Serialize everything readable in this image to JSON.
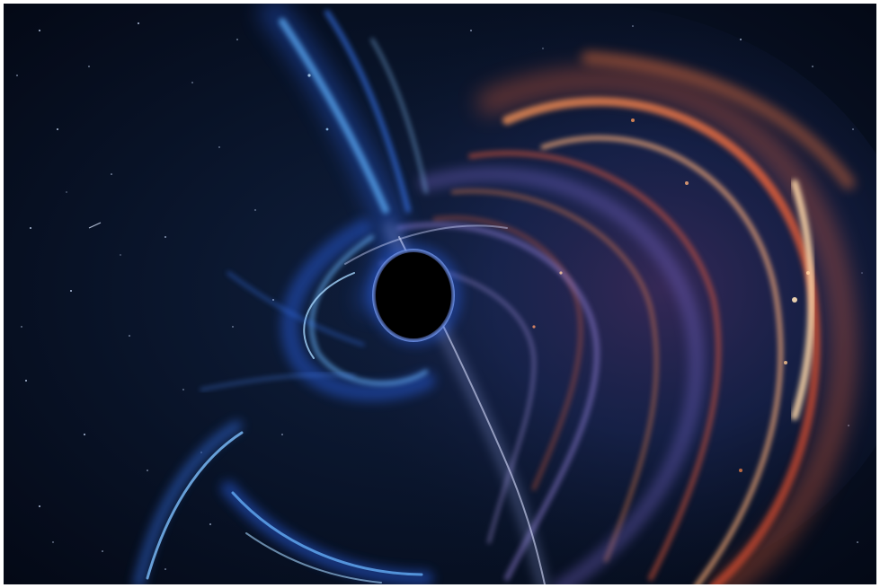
{
  "image": {
    "subject": "black-hole",
    "colors": {
      "background": "#081226",
      "blue_glow": "#2f6bff",
      "cyan_glow": "#5fb3ff",
      "orange_glow": "#ff7a3d",
      "hot_core": "#ffd7a8",
      "event_horizon": "#000000"
    }
  }
}
